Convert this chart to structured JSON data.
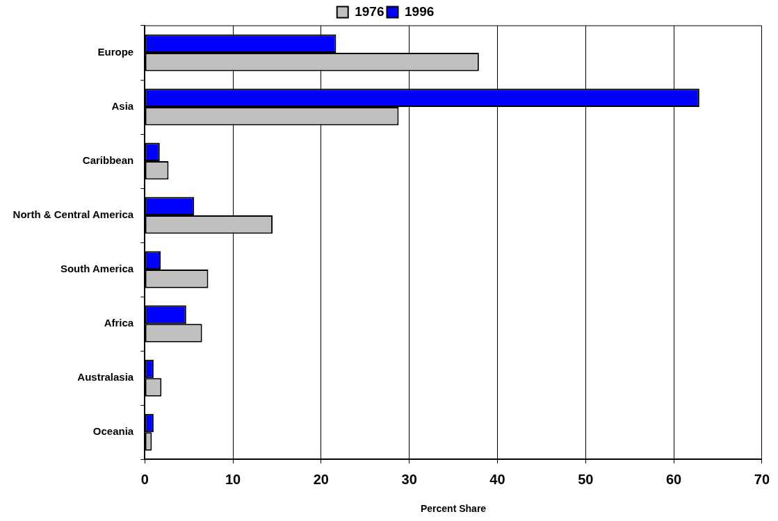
{
  "chart_data": {
    "type": "bar",
    "orientation": "horizontal",
    "xlabel": "Percent Share",
    "categories": [
      "Europe",
      "Asia",
      "Caribbean",
      "North & Central America",
      "South America",
      "Africa",
      "Australasia",
      "Oceania"
    ],
    "series": [
      {
        "name": "1976",
        "color": "#c0c0c0",
        "values": [
          37.9,
          28.8,
          2.7,
          14.5,
          7.2,
          6.5,
          1.9,
          0.8
        ]
      },
      {
        "name": "1996",
        "color": "#0000ff",
        "values": [
          21.7,
          62.9,
          1.7,
          5.6,
          1.8,
          4.7,
          1.0,
          1.0
        ]
      }
    ],
    "xlim": [
      0,
      70
    ],
    "xticks": [
      0,
      10,
      20,
      30,
      40,
      50,
      60,
      70
    ],
    "grid": "x",
    "legend": "top"
  }
}
